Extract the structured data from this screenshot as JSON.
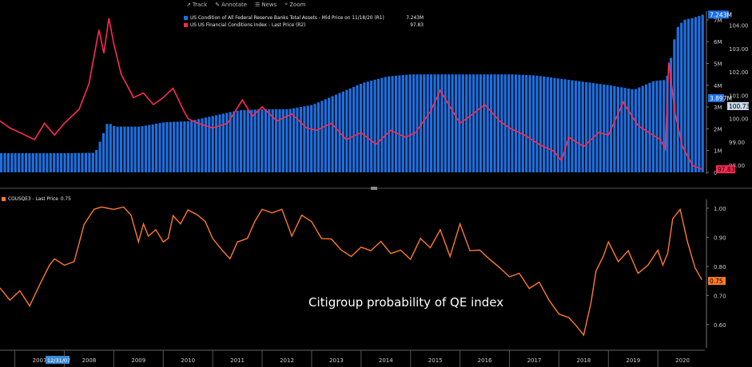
{
  "toolbar": {
    "items": [
      {
        "label": "Track",
        "icon": "track-icon"
      },
      {
        "label": "Annotate",
        "icon": "annotate-icon"
      },
      {
        "label": "News",
        "icon": "news-icon"
      },
      {
        "label": "Zoom",
        "icon": "zoom-icon"
      }
    ]
  },
  "legend_top": {
    "s1_text": "US Condition of All Federal Reserve Banks Total Assets - Mid Price on 11/18/20 (R1)",
    "s1_value": "7.243M",
    "s2_text": "US US Financial Conditions Index - Last Price (R2)",
    "s2_value": "97.83"
  },
  "legend_bottom": {
    "text": "COUSQE3 - Last Price",
    "value": "0.75"
  },
  "annotation": "Citigroup probability of QE index",
  "colors": {
    "bars": "#1f6fe0",
    "fci": "#ff2a55",
    "qe": "#ff7a2a",
    "axis_text": "#cccccc"
  },
  "chart_data": [
    {
      "type": "bar",
      "name": "US Condition of All Federal Reserve Banks Total Assets",
      "axis": "R1",
      "ylim": [
        0,
        7.4
      ],
      "y_ticks": [
        "0",
        "1M",
        "2M",
        "3M",
        "4M",
        "5M",
        "6M",
        "7M"
      ],
      "series": [
        {
          "name": "US Condition of All Federal Reserve Banks Total Assets",
          "x": [
            2006.7,
            2007.0,
            2007.5,
            2008.0,
            2008.6,
            2008.75,
            2008.85,
            2009.0,
            2009.5,
            2010.0,
            2010.5,
            2011.0,
            2011.5,
            2012.0,
            2012.5,
            2013.0,
            2013.5,
            2014.0,
            2014.5,
            2015.0,
            2015.5,
            2016.0,
            2016.5,
            2017.0,
            2017.5,
            2018.0,
            2018.5,
            2019.0,
            2019.5,
            2019.7,
            2019.9,
            2020.15,
            2020.25,
            2020.35,
            2020.5,
            2020.7,
            2020.89
          ],
          "values": [
            0.88,
            0.88,
            0.88,
            0.88,
            0.9,
            1.7,
            2.3,
            2.1,
            2.1,
            2.3,
            2.35,
            2.6,
            2.85,
            2.9,
            2.9,
            3.1,
            3.6,
            4.1,
            4.4,
            4.5,
            4.5,
            4.5,
            4.5,
            4.5,
            4.45,
            4.3,
            4.15,
            4.0,
            3.8,
            4.0,
            4.2,
            4.25,
            5.4,
            6.6,
            7.0,
            7.1,
            7.243
          ]
        }
      ],
      "last_label": "7.243M",
      "value_label": "3.897M"
    },
    {
      "type": "line",
      "name": "US Financial Conditions Index",
      "axis": "R2",
      "ylim": [
        97.7,
        104.6
      ],
      "y_ticks": [
        "98.00",
        "99.00",
        "100.00",
        "101.00",
        "102.00",
        "103.00",
        "104.00"
      ],
      "series": [
        {
          "name": "US Financial Conditions Index",
          "x": [
            2006.7,
            2006.9,
            2007.1,
            2007.4,
            2007.6,
            2007.8,
            2008.0,
            2008.3,
            2008.5,
            2008.7,
            2008.8,
            2008.9,
            2009.0,
            2009.15,
            2009.25,
            2009.4,
            2009.6,
            2009.8,
            2010.0,
            2010.2,
            2010.4,
            2010.5,
            2010.7,
            2011.0,
            2011.3,
            2011.6,
            2011.8,
            2012.0,
            2012.3,
            2012.6,
            2012.9,
            2013.1,
            2013.4,
            2013.7,
            2014.0,
            2014.3,
            2014.6,
            2014.9,
            2015.1,
            2015.4,
            2015.6,
            2015.8,
            2016.0,
            2016.2,
            2016.5,
            2016.8,
            2017.0,
            2017.3,
            2017.6,
            2017.9,
            2018.05,
            2018.2,
            2018.5,
            2018.8,
            2019.0,
            2019.3,
            2019.6,
            2019.9,
            2020.05,
            2020.15,
            2020.22,
            2020.35,
            2020.5,
            2020.7,
            2020.89
          ],
          "values": [
            99.9,
            99.6,
            99.4,
            99.1,
            99.8,
            99.3,
            99.8,
            100.4,
            101.5,
            103.8,
            102.8,
            104.3,
            103.2,
            101.9,
            101.5,
            100.9,
            101.1,
            100.6,
            100.9,
            101.3,
            100.4,
            100.0,
            99.8,
            99.6,
            99.8,
            100.8,
            100.1,
            100.5,
            99.9,
            100.2,
            99.6,
            99.5,
            99.8,
            99.1,
            99.4,
            98.9,
            99.5,
            99.2,
            99.4,
            100.3,
            101.2,
            100.5,
            99.8,
            100.1,
            100.6,
            99.9,
            99.6,
            99.3,
            98.9,
            98.6,
            98.2,
            99.2,
            98.8,
            99.4,
            99.3,
            100.7,
            99.7,
            99.3,
            99.1,
            98.7,
            102.4,
            100.2,
            98.8,
            98.0,
            97.83
          ]
        }
      ],
      "last_label": "97.83",
      "value_label": "100.73"
    },
    {
      "type": "line",
      "name": "COUSQE3",
      "ylim": [
        0.52,
        1.03
      ],
      "y_ticks": [
        "0.60",
        "0.70",
        "0.80",
        "0.90",
        "1.00"
      ],
      "series": [
        {
          "name": "COUSQE3",
          "x": [
            2006.7,
            2006.9,
            2007.1,
            2007.3,
            2007.5,
            2007.7,
            2007.8,
            2008.0,
            2008.2,
            2008.4,
            2008.6,
            2008.75,
            2009.0,
            2009.2,
            2009.35,
            2009.5,
            2009.6,
            2009.7,
            2009.85,
            2010.0,
            2010.1,
            2010.2,
            2010.35,
            2010.5,
            2010.7,
            2010.85,
            2011.0,
            2011.2,
            2011.35,
            2011.5,
            2011.7,
            2011.85,
            2012.0,
            2012.2,
            2012.4,
            2012.6,
            2012.8,
            2013.0,
            2013.2,
            2013.4,
            2013.6,
            2013.8,
            2014.0,
            2014.2,
            2014.4,
            2014.6,
            2014.8,
            2015.0,
            2015.2,
            2015.4,
            2015.6,
            2015.8,
            2016.0,
            2016.2,
            2016.4,
            2016.6,
            2016.8,
            2017.0,
            2017.2,
            2017.4,
            2017.6,
            2017.8,
            2018.0,
            2018.2,
            2018.35,
            2018.5,
            2018.65,
            2018.75,
            2018.9,
            2019.0,
            2019.2,
            2019.4,
            2019.6,
            2019.8,
            2020.0,
            2020.1,
            2020.2,
            2020.3,
            2020.45,
            2020.6,
            2020.75,
            2020.89
          ],
          "values": [
            0.73,
            0.68,
            0.72,
            0.66,
            0.74,
            0.8,
            0.83,
            0.8,
            0.82,
            0.94,
            1.0,
            1.0,
            1.0,
            1.0,
            0.98,
            0.88,
            0.95,
            0.9,
            0.93,
            0.88,
            0.9,
            0.97,
            0.95,
            0.99,
            0.98,
            0.95,
            0.9,
            0.85,
            0.83,
            0.88,
            0.9,
            0.95,
            1.0,
            0.98,
            1.0,
            0.9,
            0.98,
            0.95,
            0.9,
            0.89,
            0.86,
            0.83,
            0.87,
            0.85,
            0.89,
            0.84,
            0.86,
            0.82,
            0.9,
            0.86,
            0.93,
            0.83,
            0.95,
            0.85,
            0.86,
            0.82,
            0.8,
            0.76,
            0.78,
            0.72,
            0.75,
            0.68,
            0.64,
            0.62,
            0.6,
            0.56,
            0.68,
            0.78,
            0.84,
            0.88,
            0.82,
            0.85,
            0.78,
            0.8,
            0.86,
            0.8,
            0.85,
            0.96,
            1.0,
            0.88,
            0.8,
            0.75
          ]
        }
      ],
      "last_label": "0.75"
    }
  ],
  "x_axis": {
    "ticks": [
      "2007",
      "2008",
      "2009",
      "2010",
      "2011",
      "2012",
      "2013",
      "2014",
      "2015",
      "2016",
      "2017",
      "2018",
      "2019",
      "2020"
    ],
    "range": [
      2006.7,
      2020.95
    ],
    "start_label": "12/31/07"
  }
}
